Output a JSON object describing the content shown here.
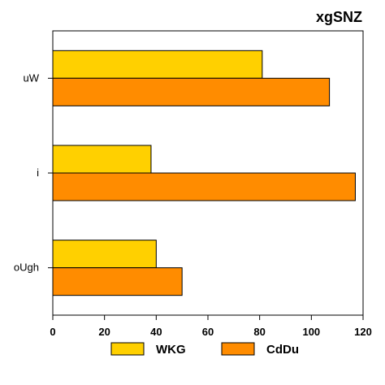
{
  "chart_data": {
    "type": "bar",
    "orientation": "horizontal",
    "title": "xgSNZ",
    "categories": [
      "uW",
      "i",
      "oUgh"
    ],
    "series": [
      {
        "name": "WKG",
        "values": [
          81,
          38,
          40
        ],
        "color": "#FFD000"
      },
      {
        "name": "CdDu",
        "values": [
          107,
          117,
          50
        ],
        "color": "#FF8C00"
      }
    ],
    "xlim": [
      0,
      120
    ],
    "xticks": [
      0,
      20,
      40,
      60,
      80,
      100,
      120
    ],
    "xlabel": "",
    "ylabel": "",
    "grid": false,
    "legend_position": "bottom"
  }
}
